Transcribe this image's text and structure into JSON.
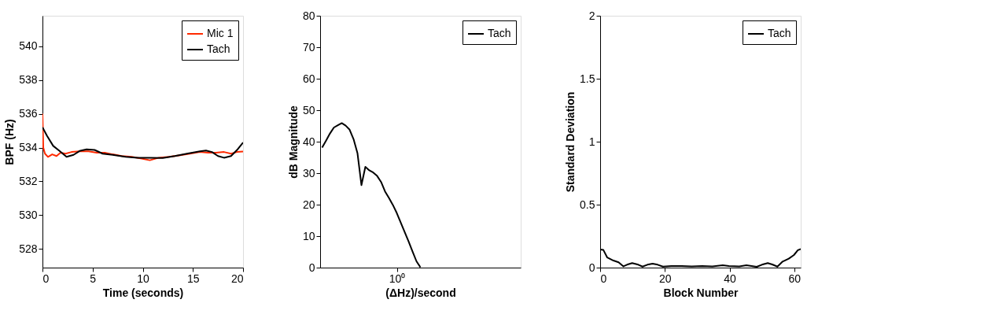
{
  "chart_data": [
    {
      "type": "line",
      "xlabel": "Time (seconds)",
      "ylabel": "BPF (Hz)",
      "xlim": [
        0,
        20
      ],
      "ylim": [
        526.9,
        541.8
      ],
      "xticks": [
        0,
        5,
        10,
        15,
        20
      ],
      "yticks": [
        528,
        530,
        532,
        534,
        536,
        538,
        540
      ],
      "grid": false,
      "legend": "top right",
      "series": [
        {
          "name": "Mic 1",
          "color": "#ff2a00",
          "x": [
            0,
            0.08,
            0.25,
            0.55,
            0.97,
            1.4,
            1.8,
            2.3,
            2.9,
            3.7,
            4.6,
            5.4,
            6.2,
            7,
            7.9,
            8.9,
            9.9,
            10.7,
            11.6,
            12.6,
            13.6,
            14.7,
            15.7,
            16.5,
            17.3,
            18.1,
            18.8,
            19.4,
            20
          ],
          "values": [
            536.0,
            534.0,
            533.64,
            533.45,
            533.6,
            533.5,
            533.7,
            533.64,
            533.74,
            533.78,
            533.78,
            533.7,
            533.7,
            533.6,
            533.5,
            533.45,
            533.35,
            533.25,
            533.4,
            533.45,
            533.54,
            533.64,
            533.74,
            533.7,
            533.7,
            533.74,
            533.64,
            533.74,
            533.77
          ]
        },
        {
          "name": "Tach",
          "color": "#000000",
          "x": [
            0,
            0.45,
            1.07,
            1.7,
            2.4,
            3.1,
            3.7,
            4.4,
            5.2,
            6,
            7,
            8.3,
            9.5,
            10.7,
            12,
            13.2,
            14.4,
            15.7,
            16.3,
            16.9,
            17.5,
            18.1,
            18.8,
            19.4,
            20
          ],
          "values": [
            535.2,
            534.7,
            534.1,
            533.8,
            533.45,
            533.57,
            533.8,
            533.9,
            533.86,
            533.64,
            533.57,
            533.45,
            533.4,
            533.4,
            533.38,
            533.5,
            533.64,
            533.78,
            533.83,
            533.74,
            533.5,
            533.4,
            533.5,
            533.86,
            534.3
          ]
        }
      ]
    },
    {
      "type": "line",
      "xlabel": "(ΔHz)/second",
      "ylabel": "dB Magnitude",
      "categories": [
        null,
        null,
        null,
        null,
        null,
        null,
        null,
        null,
        null,
        null,
        null,
        null,
        null,
        null,
        null,
        null,
        null,
        null,
        null,
        "10⁰",
        null,
        null,
        null,
        null,
        null,
        null,
        null,
        null,
        null,
        null,
        null,
        null,
        null,
        null,
        null,
        null,
        null,
        null,
        null,
        null,
        null,
        null,
        null,
        null,
        null,
        null,
        null,
        null,
        null,
        null,
        null
      ],
      "ylim": [
        0,
        80
      ],
      "yticks": [
        0,
        10,
        20,
        30,
        40,
        50,
        60,
        70,
        80
      ],
      "grid": false,
      "legend": "top right",
      "series": [
        {
          "name": "Tach",
          "color": "#000000",
          "values": [
            38.1,
            40.3,
            42.6,
            44.5,
            45.2,
            45.9,
            45.1,
            43.8,
            40.8,
            36.3,
            26.2,
            32.0,
            30.9,
            30.2,
            29.1,
            27.2,
            24.2,
            22.1,
            19.9,
            17.3,
            14.3,
            11.3,
            8.3,
            5.1,
            2.0,
            0.1,
            null,
            null,
            null,
            null,
            null,
            null,
            null,
            null,
            null,
            null,
            null,
            null,
            null,
            null,
            null,
            null,
            null,
            null,
            null,
            null,
            null,
            null,
            null,
            null,
            null
          ]
        }
      ]
    },
    {
      "type": "line",
      "xlabel": "Block Number",
      "ylabel": "Standard Deviation",
      "xlim": [
        0,
        62
      ],
      "ylim": [
        0,
        2
      ],
      "xticks": [
        0,
        20,
        40,
        60
      ],
      "yticks": [
        0,
        0.5,
        1,
        1.5,
        2
      ],
      "grid": false,
      "legend": "top right",
      "series": [
        {
          "name": "Tach",
          "color": "#000000",
          "x": [
            0,
            1,
            2.2,
            4.1,
            5.7,
            7.2,
            8.3,
            9.9,
            11.8,
            13.1,
            14.6,
            16.2,
            17.8,
            19.4,
            22,
            25.2,
            28.3,
            31.5,
            34.7,
            37.9,
            39.8,
            43,
            45.2,
            46.8,
            48.4,
            50,
            51.8,
            53.2,
            54.8,
            56.4,
            58.3,
            59.9,
            61.1,
            62
          ],
          "values": [
            0.144,
            0.14,
            0.08,
            0.056,
            0.042,
            0.01,
            0.023,
            0.036,
            0.023,
            0.008,
            0.023,
            0.031,
            0.023,
            0.008,
            0.012,
            0.013,
            0.01,
            0.012,
            0.01,
            0.019,
            0.012,
            0.01,
            0.019,
            0.013,
            0.006,
            0.023,
            0.036,
            0.025,
            0.008,
            0.048,
            0.071,
            0.1,
            0.138,
            0.148
          ]
        }
      ]
    }
  ]
}
